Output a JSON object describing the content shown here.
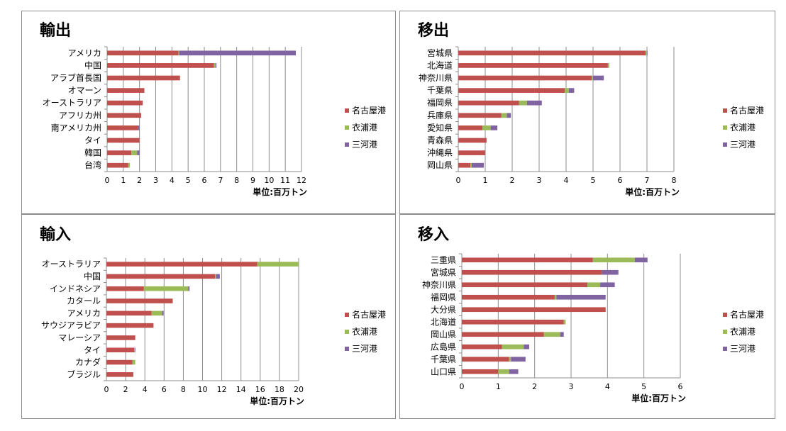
{
  "colors": {
    "nagoya": "#c0504d",
    "kinuura": "#9bbb59",
    "mikawa": "#8064a2",
    "grid": "#8c8c8c"
  },
  "chart_data": [
    {
      "type": "bar",
      "title": "輸出",
      "xlabel": "単位:百万トン",
      "xlim": [
        0,
        12
      ],
      "ticks": [
        0,
        1,
        2,
        3,
        4,
        5,
        6,
        7,
        8,
        9,
        10,
        11,
        12
      ],
      "categories": [
        "アメリカ",
        "中国",
        "アラブ首長国",
        "オマーン",
        "オーストラリア",
        "アフリカ州",
        "南アメリカ州",
        "タイ",
        "韓国",
        "台湾"
      ],
      "series": [
        {
          "name": "名古屋港",
          "values": [
            4.4,
            6.6,
            4.5,
            2.3,
            2.2,
            2.1,
            1.9,
            2.0,
            1.5,
            1.3
          ]
        },
        {
          "name": "衣浦港",
          "values": [
            0.05,
            0.1,
            0,
            0,
            0,
            0,
            0,
            0,
            0.35,
            0.1
          ]
        },
        {
          "name": "三河港",
          "values": [
            7.2,
            0.05,
            0,
            0,
            0,
            0,
            0.1,
            0,
            0.15,
            0
          ]
        }
      ],
      "legend": "right"
    },
    {
      "type": "bar",
      "title": "移出",
      "xlabel": "単位:百万トン",
      "xlim": [
        0,
        8
      ],
      "ticks": [
        0,
        1,
        2,
        3,
        4,
        5,
        6,
        7,
        8
      ],
      "categories": [
        "宮城県",
        "北海道",
        "神奈川県",
        "千葉県",
        "福岡県",
        "兵庫県",
        "愛知県",
        "青森県",
        "沖縄県",
        "岡山県"
      ],
      "series": [
        {
          "name": "名古屋港",
          "values": [
            6.95,
            5.55,
            4.95,
            3.95,
            2.25,
            1.6,
            0.9,
            1.05,
            1.0,
            0.45
          ]
        },
        {
          "name": "衣浦港",
          "values": [
            0.05,
            0.05,
            0.05,
            0.15,
            0.3,
            0.2,
            0.3,
            0,
            0,
            0.05
          ]
        },
        {
          "name": "三河港",
          "values": [
            0.02,
            0,
            0.4,
            0.2,
            0.55,
            0.15,
            0.25,
            0,
            0,
            0.45
          ]
        }
      ],
      "legend": "right"
    },
    {
      "type": "bar",
      "title": "輸入",
      "xlabel": "単位:百万トン",
      "xlim": [
        0,
        20
      ],
      "ticks": [
        0,
        2,
        4,
        6,
        8,
        10,
        12,
        14,
        16,
        18,
        20
      ],
      "categories": [
        "オーストラリア",
        "中国",
        "インドネシア",
        "カタール",
        "アメリカ",
        "サウジアラビア",
        "マレーシア",
        "タイ",
        "カナダ",
        "ブラジル"
      ],
      "series": [
        {
          "name": "名古屋港",
          "values": [
            15.7,
            11.3,
            3.9,
            6.9,
            4.7,
            4.9,
            3.0,
            2.9,
            2.7,
            2.8
          ]
        },
        {
          "name": "衣浦港",
          "values": [
            4.3,
            0.1,
            4.6,
            0,
            1.1,
            0,
            0,
            0.05,
            0.3,
            0
          ]
        },
        {
          "name": "三河港",
          "values": [
            0,
            0.4,
            0.15,
            0,
            0.15,
            0,
            0,
            0.05,
            0,
            0
          ]
        }
      ],
      "legend": "right"
    },
    {
      "type": "bar",
      "title": "移入",
      "xlabel": "単位:百万トン",
      "xlim": [
        0,
        6
      ],
      "ticks": [
        0,
        1,
        2,
        3,
        4,
        5,
        6
      ],
      "categories": [
        "三重県",
        "宮城県",
        "神奈川県",
        "福岡県",
        "大分県",
        "北海道",
        "岡山県",
        "広島県",
        "千葉県",
        "山口県"
      ],
      "series": [
        {
          "name": "名古屋港",
          "values": [
            3.6,
            3.85,
            3.45,
            2.55,
            3.95,
            2.8,
            2.25,
            1.1,
            1.3,
            1.0
          ]
        },
        {
          "name": "衣浦港",
          "values": [
            1.15,
            0,
            0.35,
            0.05,
            0,
            0.05,
            0.45,
            0.6,
            0.05,
            0.3
          ]
        },
        {
          "name": "三河港",
          "values": [
            0.35,
            0.45,
            0.4,
            1.35,
            0,
            0,
            0.1,
            0.15,
            0.4,
            0.25
          ]
        }
      ],
      "legend": "right"
    }
  ]
}
